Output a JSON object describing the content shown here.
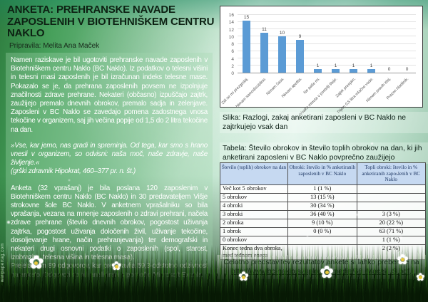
{
  "page": {
    "title": "ANKETA: PREHRANSKE NAVADE ZAPOSLENIH V BIOTEHNIŠKEM CENTRU NAKLO",
    "byline": "Pripravila: Melita Ana Maček",
    "watermark": "wallpapertag.com"
  },
  "icons": {
    "daisy_glyph": "✿"
  },
  "left_column": {
    "paragraph1": "Namen raziskave je bil ugotoviti prehranske navade zaposlenih v Biotehniškem centru Naklo (BC Naklo). Iz podatkov o telesni višini in telesni masi zaposlenih je bil izračunan indeks telesne mase. Pokazalo se je, da prehrana zaposlenih povsem ne izpolnjuje značilnosti zdrave prehrane. Nekateri (občasno) izpuščajo zajtrk, zaužijejo premalo dnevnih obrokov, premalo sadja in zelenjave. Zaposleni v BC Naklo se zavedajo pomena zadostnega vnosa tekočine v organizem, saj jih večina popije od 1,5 do 2 litra tekočine na dan.",
    "quote": "»Vse, kar jemo, nas gradi in spreminja. Od tega, kar smo s hrano vnesli v organizem, so odvisni: naša moč, naše zdravje, naše življenje.«",
    "quote_attribution": "(grški zdravnik Hipokrat, 460–377 pr. n. št.)",
    "paragraph2": "Anketa (32 vprašanj) je bila poslana 120 zaposlenim v Biotehniškem centru Naklo (BC Naklo) in 30 predavateljem Višje strokovne šole BC Naklo. V anketnem vprašalniku so bila vprašanja, vezana na mnenje zaposlenih o zdravi prehrani, načela zdrave prehrane (število dnevnih obrokov, pogostost uživanja zajtrka, pogostost uživanja določenih živil, uživanje tekočine, dosoljevanje hrane, način prehranjevanja) ter demografski in nekateri drugi osnovni podatki o zaposlenih (spol, starost, izobrazba, telesna višina in telesna masa).",
    "paragraph3": "Prejela sem 89 odgovorov, kar predstavlja 59,3-odstotno odzivnost na anketo. Odgovori so bili analizirani s pomočjo Microsoft Excela."
  },
  "chart_data": {
    "type": "bar",
    "categories": [
      "Zdi se mi prezgodaj.",
      "Nimam samodiscipline.",
      "Nimam časa.",
      "Nimam apetita.",
      "Ne paše mi.",
      "Vsaka minuta v postelji šteje.",
      "Zajtrk prespim.",
      "Pijem 0,5 litra mlačne vode.",
      "Nimam pravih idej.",
      "Prazen hladilnik."
    ],
    "values": [
      15,
      11,
      10,
      9,
      1,
      1,
      1,
      1,
      0,
      0
    ],
    "title": "",
    "xlabel": "",
    "ylabel": "",
    "ylim": [
      0,
      16
    ],
    "ytick_step": 2,
    "grid": true,
    "legend_position": "none",
    "bar_color": "#5b9bd5"
  },
  "figure": {
    "caption": "Slika: Razlogi, zakaj anketirani zaposleni v BC Naklo ne zajtrkujejo vsak dan"
  },
  "table": {
    "caption": "Tabela: Število obrokov in število toplih obrokov na dan, ki jih anketirani zaposleni v BC Naklo povprečno zaužijejo",
    "headers": [
      "Število (toplih) obrokov na dan",
      "Obroki: število in % anketiranih zaposlenih v BC Naklo",
      "Topli obroki: število in % anketiranih zaposlenih v BC Naklo"
    ],
    "rows": [
      [
        "Več kot 5 obrokov",
        "1 (1 %)",
        ""
      ],
      [
        "5 obrokov",
        "13 (15 %)",
        ""
      ],
      [
        "4 obroki",
        "30 (34 %)",
        ""
      ],
      [
        "3 obroki",
        "36 (40 %)",
        "3 (3 %)"
      ],
      [
        "2 obroka",
        "9 (10 %)",
        "20 (22 %)"
      ],
      [
        "1 obrok",
        "0 (0 %)",
        "63 (71 %)"
      ],
      [
        "0 obrokov",
        "",
        "1 (1 %)"
      ],
      [
        "Konec tedna dva obroka, med tednom enega",
        "",
        "2 (2 %)"
      ]
    ],
    "header_bg": "#c6d9f1"
  },
  "footer": {
    "text": "Celotno predstavitev rezultatov ankete si lahko preberete na",
    "link": "http://www.bc-naklo.si/uploads/media/66_Macek_S.pdf",
    "suffix": "."
  }
}
